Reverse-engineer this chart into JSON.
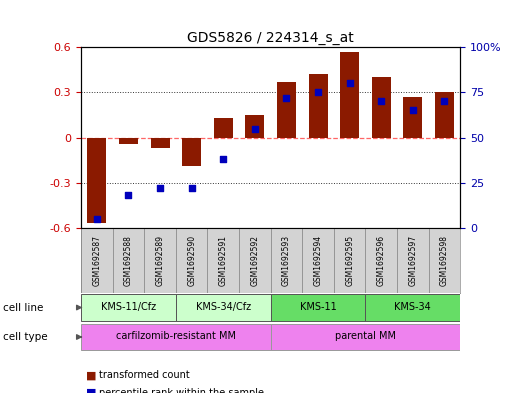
{
  "title": "GDS5826 / 224314_s_at",
  "samples": [
    "GSM1692587",
    "GSM1692588",
    "GSM1692589",
    "GSM1692590",
    "GSM1692591",
    "GSM1692592",
    "GSM1692593",
    "GSM1692594",
    "GSM1692595",
    "GSM1692596",
    "GSM1692597",
    "GSM1692598"
  ],
  "transformed_count": [
    -0.57,
    -0.04,
    -0.07,
    -0.19,
    0.13,
    0.15,
    0.37,
    0.42,
    0.57,
    0.4,
    0.27,
    0.3
  ],
  "percentile_rank": [
    5,
    18,
    22,
    22,
    38,
    55,
    72,
    75,
    80,
    70,
    65,
    70
  ],
  "ylim_left": [
    -0.6,
    0.6
  ],
  "ylim_right": [
    0,
    100
  ],
  "yticks_left": [
    -0.6,
    -0.3,
    0.0,
    0.3,
    0.6
  ],
  "yticks_left_labels": [
    "-0.6",
    "-0.3",
    "0",
    "0.3",
    "0.6"
  ],
  "yticks_right": [
    0,
    25,
    50,
    75,
    100
  ],
  "yticks_right_labels": [
    "0",
    "25",
    "50",
    "75",
    "100%"
  ],
  "bar_color": "#8B1A00",
  "scatter_color": "#0000BB",
  "cell_line_groups": [
    {
      "label": "KMS-11/Cfz",
      "start": 0,
      "end": 3,
      "color": "#CCFFCC"
    },
    {
      "label": "KMS-34/Cfz",
      "start": 3,
      "end": 6,
      "color": "#CCFFCC"
    },
    {
      "label": "KMS-11",
      "start": 6,
      "end": 9,
      "color": "#66DD66"
    },
    {
      "label": "KMS-34",
      "start": 9,
      "end": 12,
      "color": "#66DD66"
    }
  ],
  "cell_type_groups": [
    {
      "label": "carfilzomib-resistant MM",
      "start": 0,
      "end": 6,
      "color": "#EE82EE"
    },
    {
      "label": "parental MM",
      "start": 6,
      "end": 12,
      "color": "#EE82EE"
    }
  ],
  "legend_bar_label": "transformed count",
  "legend_scatter_label": "percentile rank within the sample",
  "zero_line_color": "#FF6666",
  "dotted_line_color": "#333333",
  "header_row_color": "#D3D3D3",
  "cell_line_label": "cell line",
  "cell_type_label": "cell type"
}
